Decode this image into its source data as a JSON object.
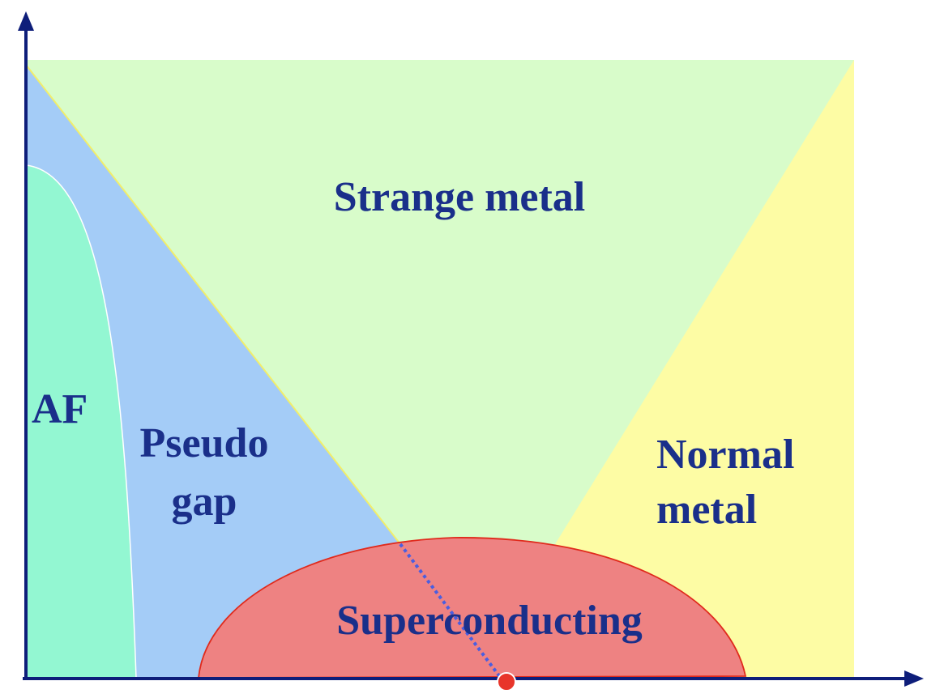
{
  "diagram": {
    "labels": {
      "strange_metal": "Strange metal",
      "af": "AF",
      "pseudo_gap_line1": "Pseudo",
      "pseudo_gap_line2": "gap",
      "normal_metal_line1": "Normal",
      "normal_metal_line2": "metal",
      "superconducting": "Superconducting"
    },
    "colors": {
      "text": "#1a2f8a",
      "strange_metal_fill": "#d8fcca",
      "af_fill": "#93f7d2",
      "pseudo_gap_fill": "#a4ccf7",
      "normal_metal_fill": "#fdfca4",
      "superconducting_fill": "#ee8282",
      "superconducting_stroke": "#e02a1c",
      "crossover_line": "#4a5ee0",
      "critical_point": "#e8352a",
      "axes": "#0e1e7a"
    }
  }
}
